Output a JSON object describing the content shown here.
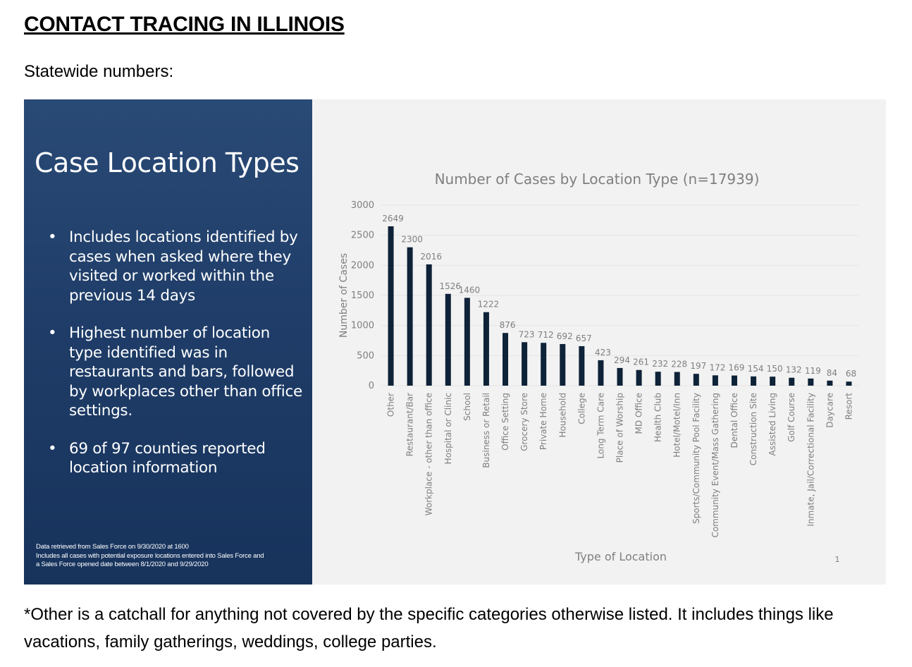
{
  "document": {
    "title": "CONTACT TRACING IN ILLINOIS",
    "subtitle": "Statewide numbers:",
    "footnote_text": "*Other is a catchall for anything not covered by the specific categories otherwise listed. It includes things like vacations, family gatherings, weddings, college parties."
  },
  "slide": {
    "heading": "Case Location Types",
    "bullets": [
      "Includes locations identified by cases when asked where they visited or worked within the previous 14 days",
      "Highest number of location type identified was in restaurants and bars, followed by workplaces other than office settings.",
      "69 of 97 counties reported location information"
    ],
    "source_lines": [
      "Data retrieved from Sales Force on 9/30/2020 at 1600",
      "Includes all cases with potential exposure locations entered into Sales Force and",
      "a Sales Force opened date between 8/1/2020 and 9/29/2020"
    ],
    "page_number": "1",
    "colors": {
      "panel": "#1f3d68",
      "bar": "#0e2238",
      "chart_bg": "#f2f2f2",
      "text_gray": "#7f7f7f"
    }
  },
  "chart_data": {
    "type": "bar",
    "title": "Number of Cases by Location Type (n=17939)",
    "xlabel": "Type of Location",
    "ylabel": "Number of Cases",
    "ylim": [
      0,
      3000
    ],
    "yticks": [
      0,
      500,
      1000,
      1500,
      2000,
      2500,
      3000
    ],
    "categories": [
      "Other",
      "Restaurant/Bar",
      "Workplace - other than office",
      "Hospital or Clinic",
      "School",
      "Business or Retail",
      "Office Setting",
      "Grocery Store",
      "Private Home",
      "Household",
      "College",
      "Long Term Care",
      "Place of Worship",
      "MD Office",
      "Health Club",
      "Hotel/Motel/Inn",
      "Sports/Community Pool Facility",
      "Community Event/Mass Gathering",
      "Dental Office",
      "Construction Site",
      "Assisted Living",
      "Golf Course",
      "Inmate, Jail/Correctional Facility",
      "Daycare",
      "Resort"
    ],
    "values": [
      2649,
      2300,
      2016,
      1526,
      1460,
      1222,
      876,
      723,
      712,
      692,
      657,
      423,
      294,
      261,
      232,
      228,
      197,
      172,
      169,
      154,
      150,
      132,
      119,
      84,
      68
    ],
    "grid": true,
    "legend": "none"
  }
}
